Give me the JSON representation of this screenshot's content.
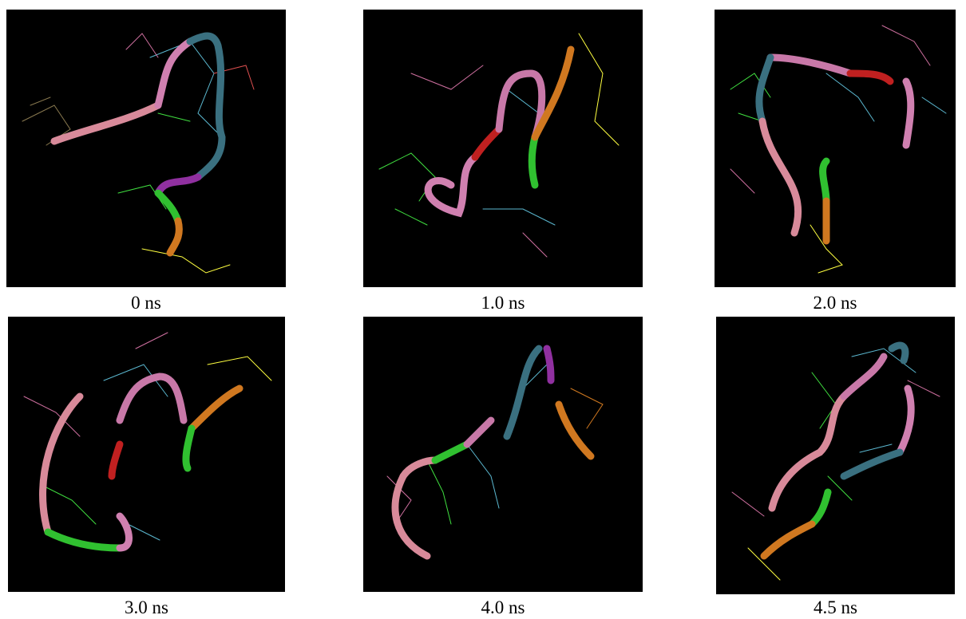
{
  "figure": {
    "panels": [
      {
        "caption": "0 ns"
      },
      {
        "caption": "1.0 ns"
      },
      {
        "caption": "2.0 ns"
      },
      {
        "caption": "3.0 ns"
      },
      {
        "caption": "4.0 ns"
      },
      {
        "caption": "4.5 ns"
      }
    ]
  }
}
